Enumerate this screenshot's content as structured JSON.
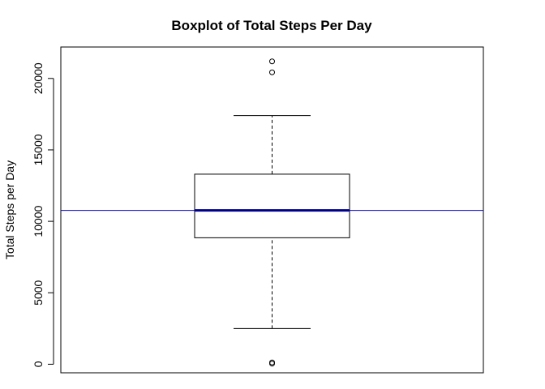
{
  "chart_data": {
    "type": "boxplot",
    "title": "Boxplot of Total Steps Per Day",
    "xlabel": "",
    "ylabel": "Total Steps per Day",
    "ylim": [
      -600,
      22200
    ],
    "yticks": [
      0,
      5000,
      10000,
      15000,
      20000
    ],
    "ytick_labels": [
      "0",
      "5000",
      "10000",
      "15000",
      "20000"
    ],
    "grid": false,
    "box": {
      "whisker_low": 2500,
      "q1": 8850,
      "median": 10765,
      "q3": 13300,
      "whisker_high": 17400
    },
    "outliers": [
      41,
      126,
      20427,
      21194
    ],
    "reference_line": {
      "value": 10766,
      "color": "#0000cc"
    },
    "colors": {
      "box": "#000000",
      "median": "#00008b",
      "reference": "#0000cc"
    }
  }
}
